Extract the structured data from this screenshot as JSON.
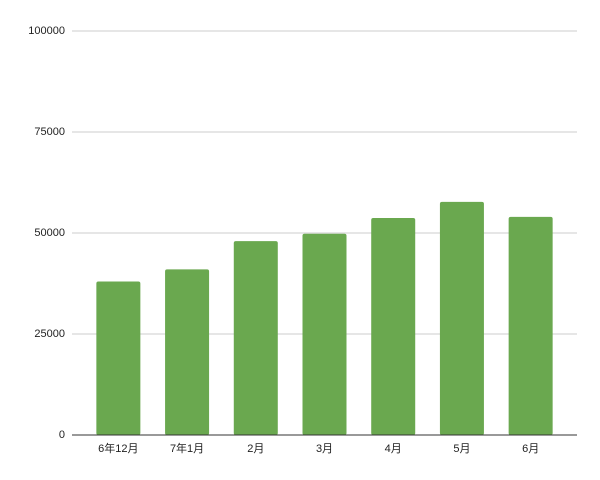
{
  "chart_data": {
    "type": "bar",
    "categories": [
      "6年12月",
      "7年1月",
      "2月",
      "3月",
      "4月",
      "5月",
      "6月"
    ],
    "values": [
      38000,
      41000,
      48000,
      49800,
      53700,
      57700,
      54000
    ],
    "color": "#6aa84f",
    "ylim": [
      0,
      100000
    ],
    "yticks": [
      0,
      25000,
      50000,
      75000,
      100000
    ],
    "grid": true
  }
}
